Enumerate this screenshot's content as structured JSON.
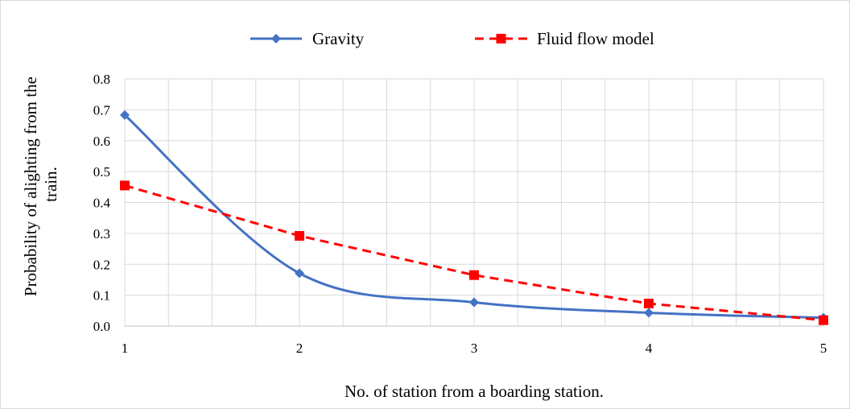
{
  "chart_data": {
    "type": "line",
    "title": "",
    "xlabel": "No. of station from a boarding station.",
    "ylabel_lines": [
      "Probability of alighting from the",
      "train."
    ],
    "x": [
      1,
      2,
      3,
      4,
      5
    ],
    "xlim": [
      1,
      5
    ],
    "ylim": [
      0,
      0.8
    ],
    "x_ticks": [
      "1",
      "2",
      "3",
      "4",
      "5"
    ],
    "y_ticks": [
      "0.0",
      "0.1",
      "0.2",
      "0.3",
      "0.4",
      "0.5",
      "0.6",
      "0.7",
      "0.8"
    ],
    "grid": true,
    "legend_position": "top",
    "series": [
      {
        "name": "Gravity",
        "values": [
          0.683,
          0.171,
          0.077,
          0.043,
          0.027
        ],
        "color": "#4472C4",
        "marker": "diamond",
        "line": "solid-smooth"
      },
      {
        "name": "Fluid flow model",
        "values": [
          0.455,
          0.292,
          0.165,
          0.073,
          0.019
        ],
        "color": "#FF0000",
        "marker": "square",
        "line": "dashed"
      }
    ]
  }
}
